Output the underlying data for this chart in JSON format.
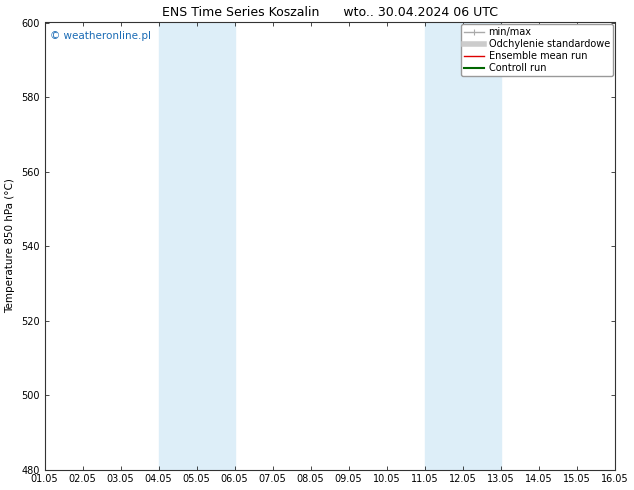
{
  "title": "ENS Time Series Koszalin      wto.. 30.04.2024 06 UTC",
  "ylabel": "Temperature 850 hPa (°C)",
  "xlabel": "",
  "ylim": [
    480,
    600
  ],
  "yticks": [
    480,
    500,
    520,
    540,
    560,
    580,
    600
  ],
  "xlim": [
    0,
    15
  ],
  "xtick_labels": [
    "01.05",
    "02.05",
    "03.05",
    "04.05",
    "05.05",
    "06.05",
    "07.05",
    "08.05",
    "09.05",
    "10.05",
    "11.05",
    "12.05",
    "13.05",
    "14.05",
    "15.05",
    "16.05"
  ],
  "shaded_regions": [
    {
      "xmin": 3.0,
      "xmax": 5.0,
      "color": "#ddeef8"
    },
    {
      "xmin": 10.0,
      "xmax": 12.0,
      "color": "#ddeef8"
    }
  ],
  "watermark": "© weatheronline.pl",
  "watermark_color": "#1a6bb5",
  "bg_color": "#ffffff",
  "plot_bg_color": "#ffffff",
  "legend_items": [
    {
      "label": "min/max",
      "color": "#aaaaaa",
      "lw": 1.0
    },
    {
      "label": "Odchylenie standardowe",
      "color": "#cccccc",
      "lw": 4.0
    },
    {
      "label": "Ensemble mean run",
      "color": "#dd0000",
      "lw": 1.0
    },
    {
      "label": "Controll run",
      "color": "#006600",
      "lw": 1.5
    }
  ],
  "title_fontsize": 9,
  "ylabel_fontsize": 7.5,
  "tick_fontsize": 7,
  "legend_fontsize": 7,
  "watermark_fontsize": 7.5
}
